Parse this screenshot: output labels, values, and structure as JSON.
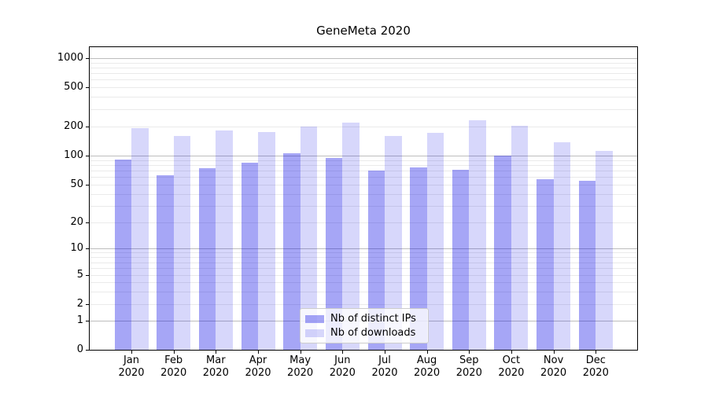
{
  "title": "GeneMeta 2020",
  "colors": {
    "bar_distinct_ips": "rgba(0,0,230,0.35)",
    "bar_downloads": "rgba(0,0,230,0.155)",
    "grid_major": "#bdbdbd",
    "grid_minor": "#eaeaea",
    "axis": "#000000"
  },
  "legend": {
    "items": [
      {
        "label": "Nb of distinct IPs",
        "color": "rgba(0,0,230,0.35)"
      },
      {
        "label": "Nb of downloads",
        "color": "rgba(0,0,230,0.155)"
      }
    ]
  },
  "chart_data": {
    "type": "bar",
    "title": "GeneMeta 2020",
    "categories": [
      "Jan 2020",
      "Feb 2020",
      "Mar 2020",
      "Apr 2020",
      "May 2020",
      "Jun 2020",
      "Jul 2020",
      "Aug 2020",
      "Sep 2020",
      "Oct 2020",
      "Nov 2020",
      "Dec 2020"
    ],
    "x_tick_months": [
      "Jan",
      "Feb",
      "Mar",
      "Apr",
      "May",
      "Jun",
      "Jul",
      "Aug",
      "Sep",
      "Oct",
      "Nov",
      "Dec"
    ],
    "x_tick_year": "2020",
    "series": [
      {
        "name": "Nb of distinct IPs",
        "color": "rgba(0,0,230,0.35)",
        "values": [
          92,
          63,
          74,
          84,
          105,
          94,
          70,
          76,
          72,
          101,
          57,
          55
        ]
      },
      {
        "name": "Nb of downloads",
        "color": "rgba(0,0,230,0.155)",
        "values": [
          193,
          160,
          181,
          174,
          200,
          218,
          159,
          171,
          230,
          205,
          137,
          112
        ]
      }
    ],
    "xlabel": "",
    "ylabel": "",
    "yscale": "symlog",
    "y_ticks": [
      0,
      1,
      2,
      5,
      10,
      20,
      50,
      100,
      200,
      500,
      1000
    ],
    "ylim": [
      0,
      1300
    ],
    "grid": "major and minor horizontal gridlines",
    "legend_position": "lower center"
  }
}
